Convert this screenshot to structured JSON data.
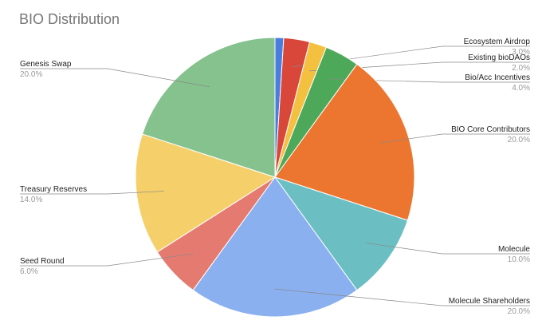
{
  "chart_data": {
    "type": "pie",
    "title": "BIO Distribution",
    "categories": [
      null,
      "Ecosystem Airdrop",
      "Existing bioDAOs",
      "Bio/Acc Incentives",
      "BIO Core Contributors",
      "Molecule",
      "Molecule Shareholders",
      "Seed Round",
      "Treasury Reserves",
      "Genesis Swap"
    ],
    "values": [
      1,
      3,
      2,
      4,
      20,
      10,
      20,
      6,
      14,
      20
    ],
    "value_labels": [
      null,
      "3.0%",
      "2.0%",
      "4.0%",
      "20.0%",
      "10.0%",
      "20.0%",
      "6.0%",
      "14.0%",
      "20.0%"
    ],
    "colors": [
      "#4a7de0",
      "#d9463a",
      "#f4c040",
      "#4ea85a",
      "#ec7630",
      "#6bbfc3",
      "#8ab0f0",
      "#e57b70",
      "#f5d06a",
      "#85c28e"
    ]
  }
}
